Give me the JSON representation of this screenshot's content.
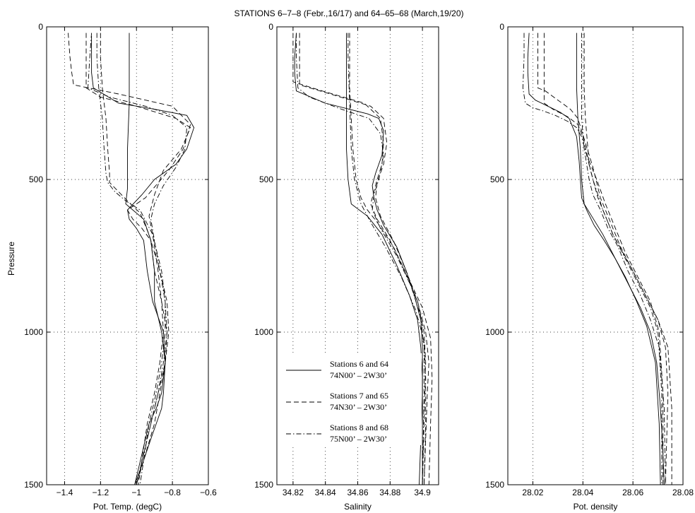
{
  "figure": {
    "title": "STATIONS 6–7–8 (Febr.,16/17) and 64–65–68 (March,19/20)",
    "ylabel": "Pressure"
  },
  "legend": [
    {
      "line1": "Stations 6 and 64",
      "line2": "74N00’ – 2W30’",
      "style": "solid"
    },
    {
      "line1": "Stations 7 and 65",
      "line2": "74N30’ – 2W30’",
      "style": "dashed"
    },
    {
      "line1": "Stations 8 and 68",
      "line2": "75N00’ – 2W30’",
      "style": "dashdot"
    }
  ],
  "chart_data": [
    {
      "type": "line",
      "xlabel": "Pot. Temp. (degC)",
      "xlim": [
        -1.5,
        -0.6
      ],
      "xticks": [
        -1.4,
        -1.2,
        -1,
        -0.8,
        -0.6
      ],
      "xtick_labels": [
        "−1.4",
        "−1.2",
        "−1",
        "−0.8",
        "−0.6"
      ],
      "ylim": [
        1500,
        0
      ],
      "yticks": [
        0,
        500,
        1000,
        1500
      ],
      "grid": true,
      "series": [
        {
          "style": "solid",
          "x": [
            -1.04,
            -1.04,
            -1.04,
            -1.05,
            -1.05,
            -1.05,
            -1.06,
            -1.04,
            -0.96,
            -0.92,
            -0.9,
            -0.9,
            -0.88,
            -0.86,
            -0.84,
            -0.85,
            -0.86,
            -0.89,
            -0.92,
            -0.96,
            -1.01
          ],
          "y": [
            20,
            100,
            250,
            400,
            500,
            530,
            580,
            590,
            630,
            700,
            800,
            900,
            950,
            1000,
            1100,
            1200,
            1250,
            1300,
            1350,
            1420,
            1500
          ]
        },
        {
          "style": "solid",
          "x": [
            -1.25,
            -1.25,
            -1.25,
            -1.24,
            -1.1,
            -0.9,
            -0.72,
            -0.68,
            -0.72,
            -0.78,
            -0.9,
            -0.97,
            -1.05,
            -1.04,
            -1.0,
            -0.96,
            -0.94,
            -0.91,
            -0.88,
            -0.85,
            -0.84,
            -0.86,
            -0.89,
            -0.93,
            -0.97,
            -1.01
          ],
          "y": [
            30,
            100,
            150,
            200,
            250,
            270,
            290,
            330,
            400,
            450,
            500,
            550,
            600,
            630,
            660,
            700,
            800,
            900,
            950,
            1000,
            1100,
            1200,
            1250,
            1300,
            1400,
            1500
          ]
        },
        {
          "style": "dashed",
          "x": [
            -1.38,
            -1.37,
            -1.36,
            -1.35,
            -1.1,
            -0.8,
            -0.7,
            -0.74,
            -0.82,
            -0.95,
            -1.05,
            -1.02,
            -0.97,
            -0.92,
            -0.9,
            -0.86,
            -0.83,
            -0.84,
            -0.87,
            -0.9,
            -0.95,
            -1.0
          ],
          "y": [
            20,
            100,
            150,
            190,
            220,
            260,
            320,
            400,
            470,
            560,
            600,
            630,
            660,
            700,
            800,
            900,
            1000,
            1100,
            1200,
            1300,
            1400,
            1500
          ]
        },
        {
          "style": "dashed",
          "x": [
            -1.2,
            -1.2,
            -1.19,
            -1.18,
            -1.17,
            -1.16,
            -1.15,
            -1.15,
            -1.1,
            -1.05,
            -0.98,
            -0.93,
            -0.87,
            -0.83,
            -0.82,
            -0.84,
            -0.88,
            -0.92,
            -0.96,
            -1.0
          ],
          "y": [
            20,
            100,
            200,
            250,
            300,
            400,
            480,
            510,
            540,
            570,
            610,
            680,
            800,
            900,
            1000,
            1100,
            1200,
            1300,
            1400,
            1500
          ]
        },
        {
          "style": "dashed",
          "x": [
            -1.28,
            -1.28,
            -1.28,
            -1.2,
            -1.0,
            -0.78,
            -0.7,
            -0.75,
            -0.85,
            -0.9,
            -0.93,
            -0.91,
            -0.88,
            -0.86,
            -0.85,
            -0.87,
            -0.9,
            -0.94,
            -0.99
          ],
          "y": [
            20,
            100,
            200,
            230,
            260,
            300,
            330,
            400,
            470,
            550,
            620,
            680,
            800,
            900,
            1000,
            1100,
            1200,
            1300,
            1500
          ]
        },
        {
          "style": "dashdot",
          "x": [
            -1.22,
            -1.22,
            -1.21,
            -1.2,
            -1.19,
            -1.18,
            -1.17,
            -1.16,
            -1.12,
            -1.06,
            -0.98,
            -0.91,
            -0.86,
            -0.84,
            -0.83,
            -0.85,
            -0.88,
            -0.92,
            -0.96,
            -1.0
          ],
          "y": [
            20,
            100,
            200,
            250,
            300,
            400,
            480,
            510,
            540,
            570,
            600,
            680,
            800,
            900,
            1000,
            1100,
            1200,
            1300,
            1400,
            1500
          ]
        },
        {
          "style": "dashdot",
          "x": [
            -1.25,
            -1.26,
            -1.27,
            -1.15,
            -0.95,
            -0.8,
            -0.72,
            -0.73,
            -0.78,
            -0.85,
            -0.9,
            -0.92,
            -0.9,
            -0.87,
            -0.84,
            -0.84,
            -0.86,
            -0.89,
            -0.93,
            -0.98
          ],
          "y": [
            20,
            100,
            200,
            230,
            260,
            290,
            330,
            400,
            460,
            520,
            580,
            630,
            700,
            800,
            900,
            1000,
            1100,
            1200,
            1300,
            1500
          ]
        }
      ]
    },
    {
      "type": "line",
      "xlabel": "Salinity",
      "xlim": [
        34.81,
        34.91
      ],
      "xticks": [
        34.82,
        34.84,
        34.86,
        34.88,
        34.9
      ],
      "xtick_labels": [
        "34.82",
        "34.84",
        "34.86",
        "34.88",
        "34.9"
      ],
      "ylim": [
        1500,
        0
      ],
      "yticks": [
        0,
        500,
        1000,
        1500
      ],
      "grid": true,
      "series": [
        {
          "style": "solid",
          "x": [
            34.853,
            34.853,
            34.853,
            34.853,
            34.853,
            34.854,
            34.856,
            34.866,
            34.875,
            34.884,
            34.892,
            34.897,
            34.899,
            34.9,
            34.9,
            34.9
          ],
          "y": [
            20,
            100,
            200,
            300,
            400,
            500,
            580,
            620,
            680,
            780,
            880,
            960,
            1050,
            1150,
            1300,
            1500
          ]
        },
        {
          "style": "solid",
          "x": [
            34.822,
            34.821,
            34.821,
            34.822,
            34.84,
            34.866,
            34.873,
            34.876,
            34.875,
            34.871,
            34.869,
            34.87,
            34.872,
            34.876,
            34.884,
            34.89,
            34.895,
            34.899,
            34.9,
            34.9,
            34.899,
            34.898
          ],
          "y": [
            20,
            100,
            150,
            210,
            250,
            285,
            300,
            340,
            420,
            480,
            520,
            560,
            600,
            650,
            720,
            800,
            880,
            960,
            1050,
            1200,
            1350,
            1500
          ]
        },
        {
          "style": "dashed",
          "x": [
            34.82,
            34.82,
            34.82,
            34.838,
            34.864,
            34.874,
            34.876,
            34.875,
            34.872,
            34.87,
            34.868,
            34.872,
            34.88,
            34.889,
            34.897,
            34.902,
            34.904,
            34.903,
            34.902,
            34.901
          ],
          "y": [
            20,
            100,
            180,
            210,
            250,
            300,
            380,
            450,
            500,
            540,
            580,
            630,
            700,
            800,
            900,
            1000,
            1100,
            1200,
            1350,
            1500
          ]
        },
        {
          "style": "dashed",
          "x": [
            34.855,
            34.855,
            34.855,
            34.856,
            34.857,
            34.859,
            34.862,
            34.866,
            34.872,
            34.882,
            34.891,
            34.9,
            34.905,
            34.906,
            34.905,
            34.904
          ],
          "y": [
            20,
            100,
            200,
            300,
            400,
            500,
            560,
            600,
            640,
            720,
            820,
            920,
            1020,
            1150,
            1300,
            1500
          ]
        },
        {
          "style": "dashed",
          "x": [
            34.824,
            34.824,
            34.824,
            34.84,
            34.868,
            34.876,
            34.878,
            34.876,
            34.872,
            34.871,
            34.874,
            34.882,
            34.89,
            34.897,
            34.901,
            34.902,
            34.901,
            34.9
          ],
          "y": [
            20,
            100,
            190,
            215,
            260,
            300,
            380,
            450,
            510,
            560,
            620,
            700,
            800,
            900,
            1000,
            1100,
            1300,
            1500
          ]
        },
        {
          "style": "dashdot",
          "x": [
            34.822,
            34.822,
            34.823,
            34.83,
            34.85,
            34.867,
            34.874,
            34.876,
            34.873,
            34.87,
            34.869,
            34.874,
            34.884,
            34.893,
            34.899,
            34.901,
            34.901,
            34.9
          ],
          "y": [
            20,
            100,
            200,
            230,
            270,
            300,
            350,
            420,
            500,
            550,
            600,
            660,
            750,
            850,
            950,
            1050,
            1200,
            1500
          ]
        },
        {
          "style": "dashdot",
          "x": [
            34.854,
            34.854,
            34.855,
            34.856,
            34.858,
            34.862,
            34.868,
            34.877,
            34.887,
            34.896,
            34.901,
            34.902,
            34.902,
            34.901
          ],
          "y": [
            20,
            100,
            250,
            400,
            500,
            580,
            640,
            720,
            820,
            930,
            1030,
            1150,
            1300,
            1500
          ]
        }
      ]
    },
    {
      "type": "line",
      "xlabel": "Pot. density",
      "xlim": [
        28.01,
        28.08
      ],
      "xticks": [
        28.02,
        28.04,
        28.06,
        28.08
      ],
      "xtick_labels": [
        "28.02",
        "28.04",
        "28.06",
        "28.08"
      ],
      "ylim": [
        1500,
        0
      ],
      "yticks": [
        0,
        500,
        1000,
        1500
      ],
      "grid": true,
      "series": [
        {
          "style": "solid",
          "x": [
            28.0375,
            28.0375,
            28.0375,
            28.038,
            28.039,
            28.0395,
            28.0405,
            28.0435,
            28.048,
            28.053,
            28.058,
            28.063,
            28.067,
            28.0695,
            28.071,
            28.072,
            28.0725
          ],
          "y": [
            20,
            100,
            200,
            300,
            400,
            500,
            580,
            620,
            680,
            760,
            840,
            920,
            1000,
            1100,
            1250,
            1400,
            1500
          ]
        },
        {
          "style": "solid",
          "x": [
            28.0185,
            28.018,
            28.018,
            28.0185,
            28.021,
            28.026,
            28.031,
            28.0345,
            28.036,
            28.0375,
            28.038,
            28.0385,
            28.039,
            28.0395,
            28.0415,
            28.0445,
            28.0485,
            28.053,
            28.057,
            28.0615,
            28.0655,
            28.069,
            28.0705,
            28.071
          ],
          "y": [
            20,
            100,
            150,
            220,
            240,
            260,
            280,
            300,
            330,
            360,
            400,
            440,
            500,
            560,
            600,
            650,
            700,
            760,
            820,
            900,
            980,
            1100,
            1300,
            1500
          ]
        },
        {
          "style": "dashed",
          "x": [
            28.022,
            28.022,
            28.022,
            28.022,
            28.025,
            28.03,
            28.035,
            28.038,
            28.041,
            28.044,
            28.047,
            28.051,
            28.055,
            28.06,
            28.065,
            28.07,
            28.073,
            28.074,
            28.073
          ],
          "y": [
            20,
            100,
            150,
            200,
            210,
            240,
            270,
            300,
            380,
            460,
            560,
            640,
            720,
            800,
            880,
            960,
            1050,
            1200,
            1500
          ]
        },
        {
          "style": "dashed",
          "x": [
            28.0405,
            28.0405,
            28.0405,
            28.041,
            28.042,
            28.0425,
            28.044,
            28.046,
            28.049,
            28.052,
            28.056,
            28.06,
            28.065,
            28.07,
            28.074,
            28.0755,
            28.0755
          ],
          "y": [
            20,
            100,
            200,
            300,
            400,
            450,
            500,
            560,
            620,
            680,
            740,
            800,
            880,
            960,
            1050,
            1250,
            1500
          ]
        },
        {
          "style": "dashed",
          "x": [
            28.0245,
            28.0245,
            28.0245,
            28.0245,
            28.028,
            28.034,
            28.038,
            28.04,
            28.042,
            28.0455,
            28.049,
            28.053,
            28.057,
            28.062,
            28.067,
            28.0705,
            28.072,
            28.072
          ],
          "y": [
            20,
            100,
            200,
            250,
            270,
            295,
            320,
            360,
            430,
            500,
            580,
            660,
            740,
            820,
            900,
            1000,
            1200,
            1500
          ]
        },
        {
          "style": "dashdot",
          "x": [
            28.0165,
            28.0165,
            28.016,
            28.017,
            28.02,
            28.024,
            28.029,
            28.034,
            28.0375,
            28.0395,
            28.0415,
            28.044,
            28.048,
            28.052,
            28.057,
            28.062,
            28.067,
            28.07,
            28.0715,
            28.0715
          ],
          "y": [
            20,
            100,
            200,
            250,
            265,
            275,
            290,
            310,
            330,
            360,
            420,
            500,
            600,
            680,
            760,
            840,
            920,
            1000,
            1200,
            1500
          ]
        },
        {
          "style": "dashdot",
          "x": [
            28.0395,
            28.0395,
            28.0395,
            28.0395,
            28.0405,
            28.0415,
            28.0425,
            28.044,
            28.047,
            28.05,
            28.054,
            28.058,
            28.063,
            28.067,
            28.0705,
            28.0725,
            28.073
          ],
          "y": [
            20,
            100,
            200,
            300,
            400,
            450,
            500,
            550,
            600,
            660,
            720,
            800,
            880,
            960,
            1050,
            1250,
            1500
          ]
        }
      ]
    }
  ]
}
